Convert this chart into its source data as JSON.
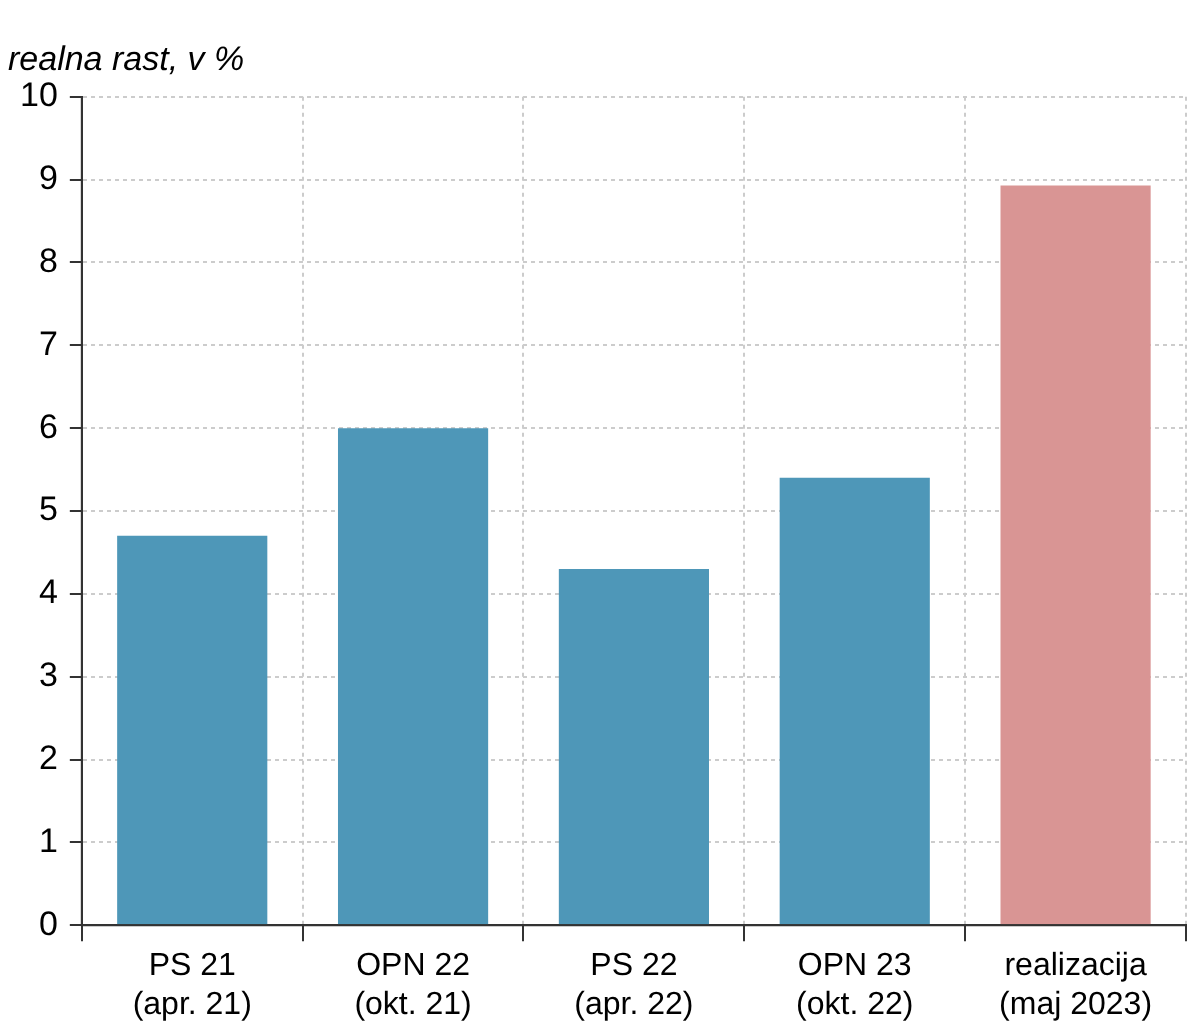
{
  "chart_data": {
    "type": "bar",
    "subtitle": "realna rast, v %",
    "categories": [
      "PS 21\n(apr. 21)",
      "OPN 22\n(okt. 21)",
      "PS 22\n(apr. 22)",
      "OPN 23\n(okt. 22)",
      "realizacija\n(maj 2023)"
    ],
    "values": [
      4.7,
      6.0,
      4.3,
      5.4,
      8.93
    ],
    "colors": [
      "#4e97b8",
      "#4e97b8",
      "#4e97b8",
      "#4e97b8",
      "#d99594"
    ],
    "ylim": [
      0,
      10
    ],
    "yticks": [
      0,
      1,
      2,
      3,
      4,
      5,
      6,
      7,
      8,
      9,
      10
    ],
    "grid": true
  }
}
